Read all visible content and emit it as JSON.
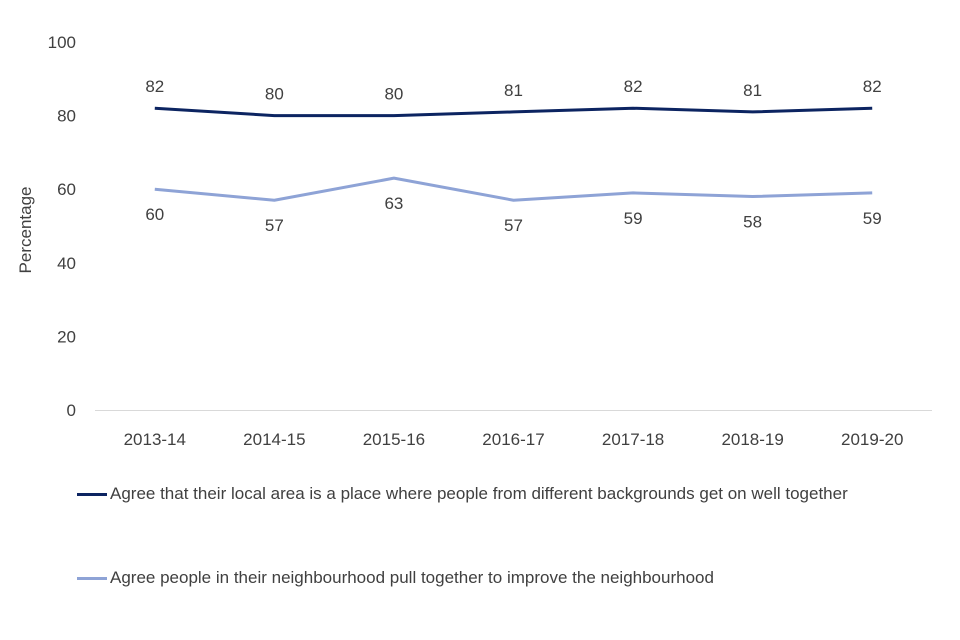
{
  "chart_data": {
    "type": "line",
    "title": "",
    "xlabel": "",
    "ylabel": "Percentage",
    "ylim": [
      0,
      100
    ],
    "yticks": [
      0,
      20,
      40,
      60,
      80,
      100
    ],
    "grid": false,
    "legend_position": "bottom",
    "categories": [
      "2013-14",
      "2014-15",
      "2015-16",
      "2016-17",
      "2017-18",
      "2018-19",
      "2019-20"
    ],
    "series": [
      {
        "name": "Agree that their local area is a place where people from different backgrounds get on well together",
        "color": "#0c2461",
        "label_pos": "above",
        "values": [
          82,
          80,
          80,
          81,
          82,
          81,
          82
        ]
      },
      {
        "name": "Agree people in their neighbourhood pull together to improve the neighbourhood",
        "color": "#8ea3d6",
        "label_pos": "below",
        "values": [
          60,
          57,
          63,
          57,
          59,
          58,
          59
        ]
      }
    ]
  }
}
